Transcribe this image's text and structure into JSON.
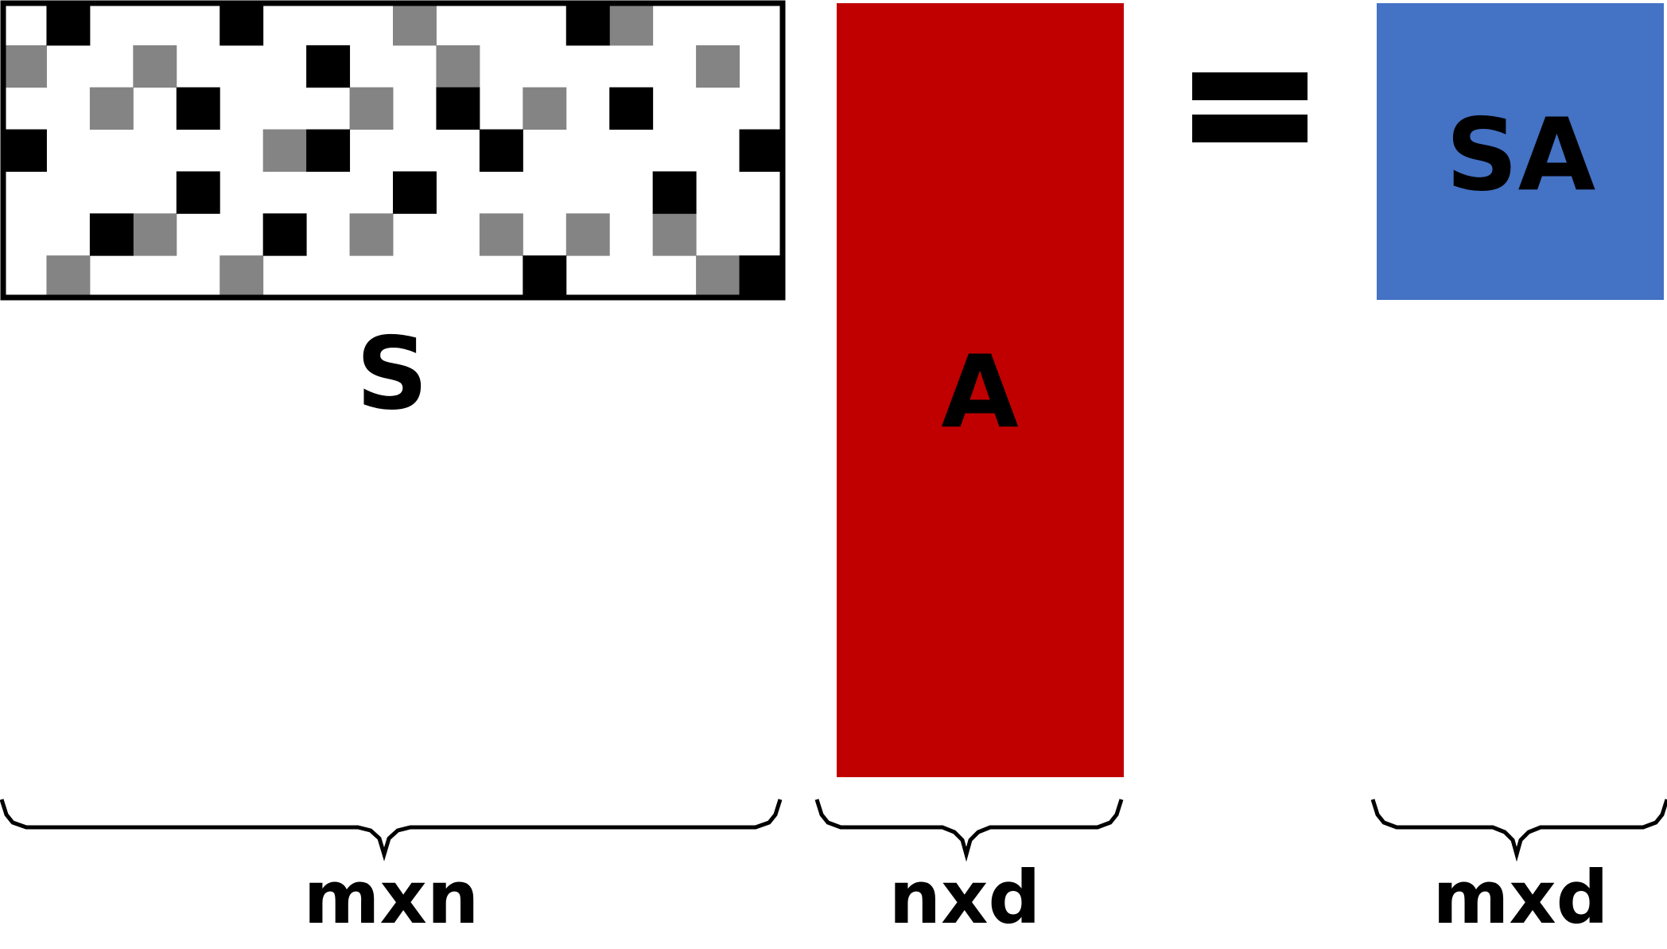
{
  "matrix_s": {
    "label": "S",
    "rows": 7,
    "cols": 18,
    "border_color": "#000000",
    "black_color": "#000000",
    "gray_color": "#848484",
    "black_cells": [
      [
        0,
        1
      ],
      [
        0,
        5
      ],
      [
        0,
        13
      ],
      [
        1,
        7
      ],
      [
        2,
        4
      ],
      [
        2,
        10
      ],
      [
        2,
        14
      ],
      [
        3,
        0
      ],
      [
        3,
        7
      ],
      [
        3,
        11
      ],
      [
        3,
        17
      ],
      [
        4,
        4
      ],
      [
        4,
        9
      ],
      [
        4,
        15
      ],
      [
        5,
        2
      ],
      [
        5,
        6
      ],
      [
        6,
        12
      ],
      [
        6,
        17
      ]
    ],
    "gray_cells": [
      [
        0,
        9
      ],
      [
        0,
        14
      ],
      [
        1,
        0
      ],
      [
        1,
        3
      ],
      [
        1,
        10
      ],
      [
        1,
        16
      ],
      [
        2,
        2
      ],
      [
        2,
        8
      ],
      [
        2,
        12
      ],
      [
        3,
        6
      ],
      [
        5,
        3
      ],
      [
        5,
        8
      ],
      [
        5,
        11
      ],
      [
        5,
        13
      ],
      [
        5,
        15
      ],
      [
        6,
        1
      ],
      [
        6,
        5
      ],
      [
        6,
        16
      ]
    ]
  },
  "matrix_a": {
    "label": "A",
    "color": "#c00000"
  },
  "equals_sign": "=",
  "matrix_sa": {
    "label": "SA",
    "color": "#4472c4"
  },
  "dimensions": {
    "s": "mxn",
    "a": "nxd",
    "sa": "mxd"
  }
}
